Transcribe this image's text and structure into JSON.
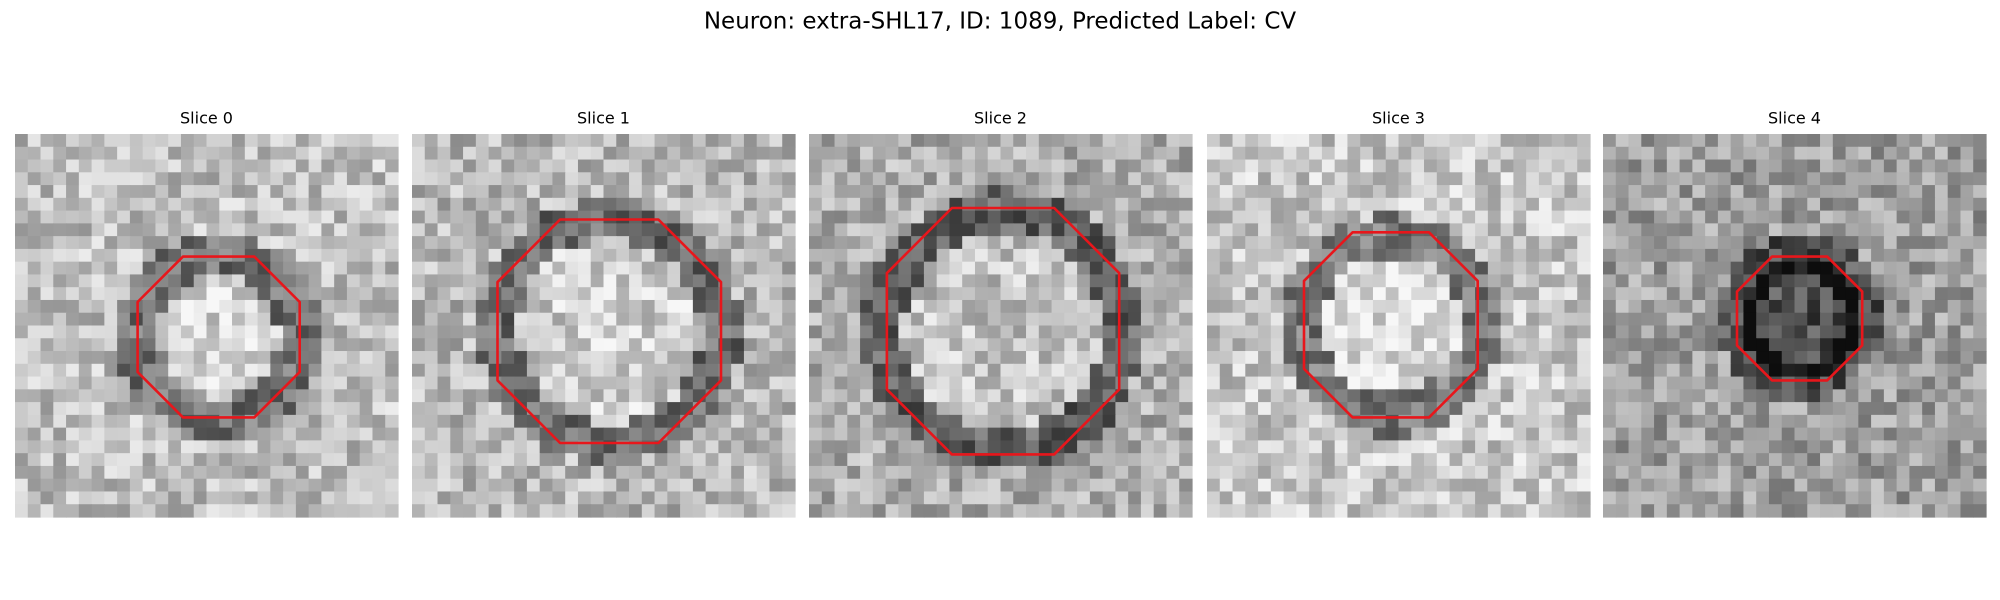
{
  "title": "Neuron: extra-SHL17, ID: 1089, Predicted Label: CV",
  "panels": [
    {
      "title": "Slice 0"
    },
    {
      "title": "Slice 1"
    },
    {
      "title": "Slice 2"
    },
    {
      "title": "Slice 3"
    },
    {
      "title": "Slice 4"
    }
  ]
}
